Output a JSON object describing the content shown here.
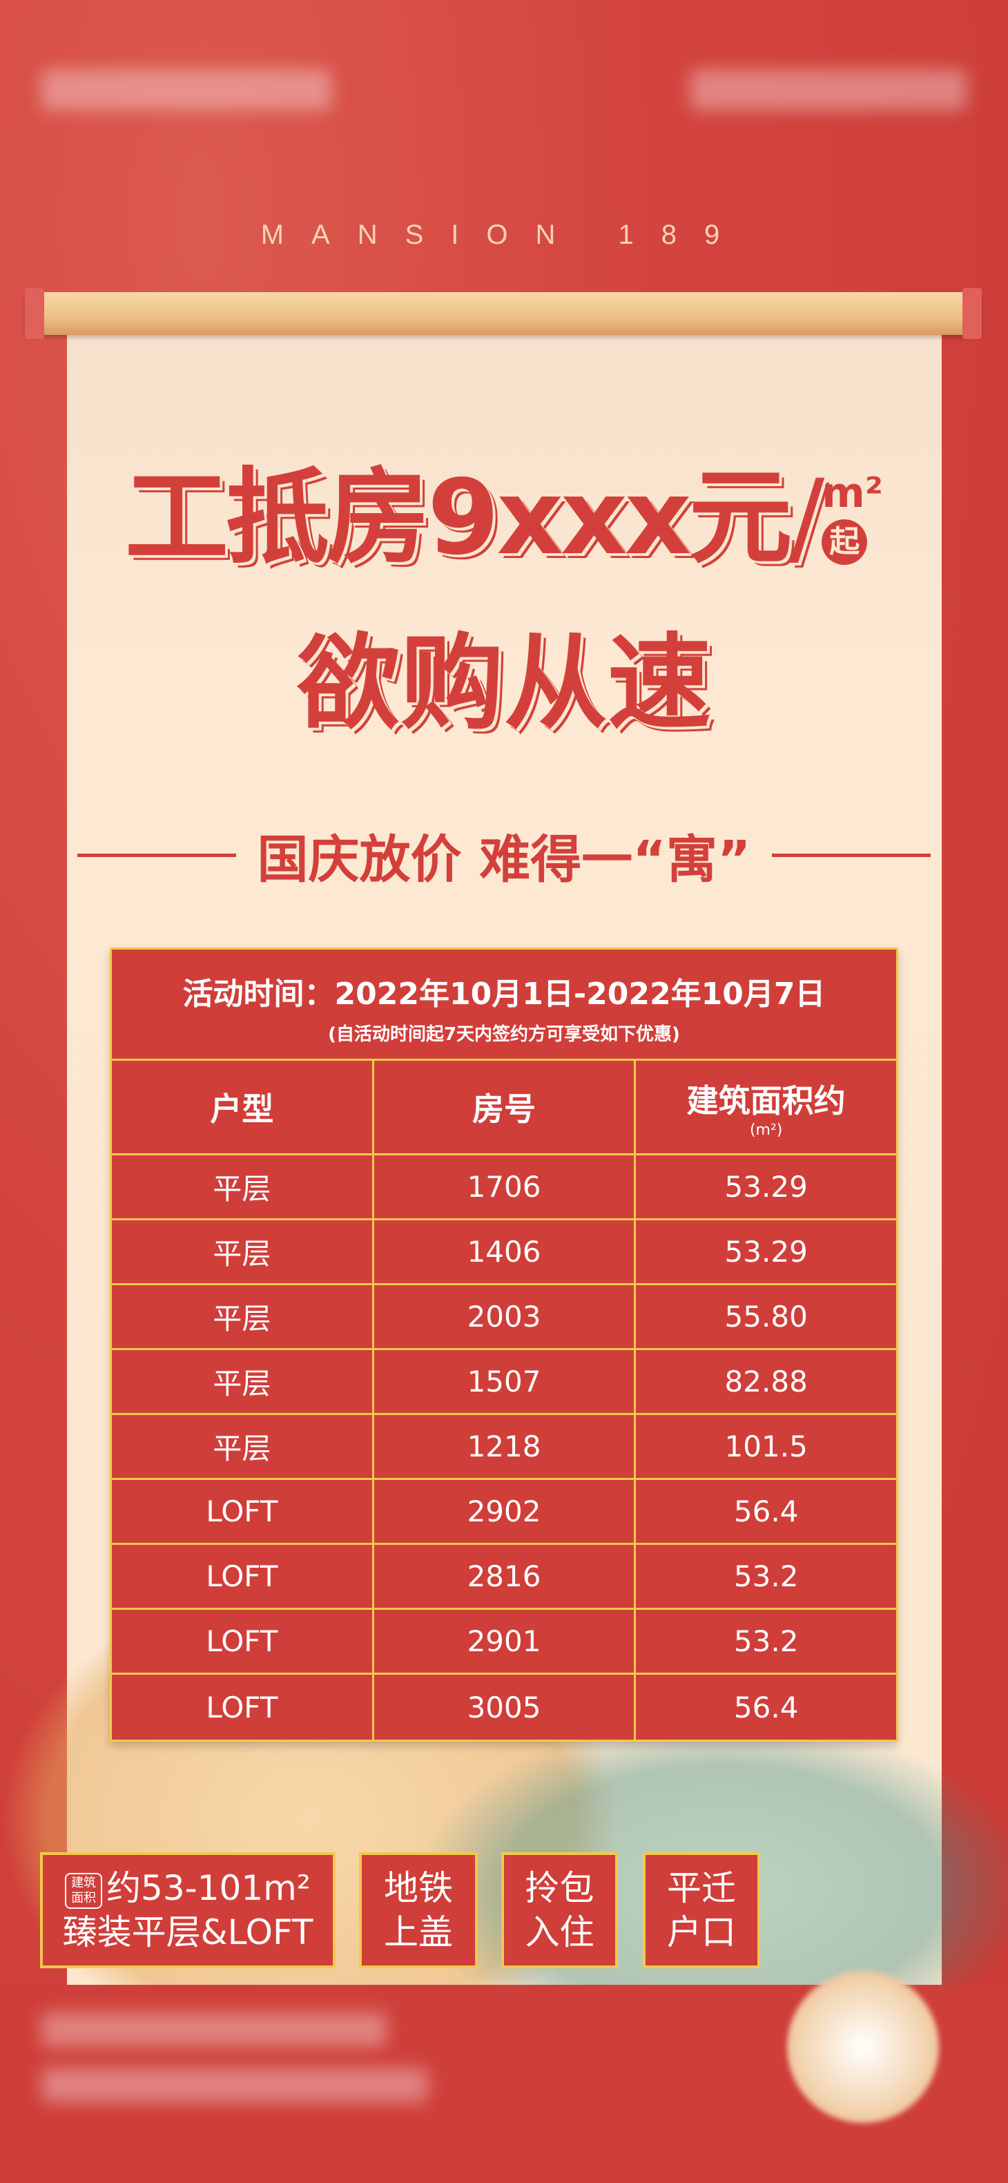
{
  "brand": "MANSION 189",
  "headline": {
    "line1_prefix": "工抵房",
    "price": "9xxx",
    "currency": "元",
    "slash": "/",
    "unit": "m²",
    "qi": "起",
    "line2": "欲购从速"
  },
  "subtitle": "国庆放价 难得一“寓”",
  "table": {
    "activity_time": "活动时间：2022年10月1日-2022年10月7日",
    "note": "(自活动时间起7天内签约方可享受如下优惠)",
    "headers": [
      "户型",
      "房号",
      "建筑面积约"
    ],
    "area_unit": "(m²)",
    "rows": [
      [
        "平层",
        "1706",
        "53.29"
      ],
      [
        "平层",
        "1406",
        "53.29"
      ],
      [
        "平层",
        "2003",
        "55.80"
      ],
      [
        "平层",
        "1507",
        "82.88"
      ],
      [
        "平层",
        "1218",
        "101.5"
      ],
      [
        "LOFT",
        "2902",
        "56.4"
      ],
      [
        "LOFT",
        "2816",
        "53.2"
      ],
      [
        "LOFT",
        "2901",
        "53.2"
      ],
      [
        "LOFT",
        "3005",
        "56.4"
      ]
    ]
  },
  "features": {
    "tag": "建筑面积",
    "area": "约53-101m²",
    "type": "臻装平层&LOFT",
    "items": [
      [
        "地铁",
        "上盖"
      ],
      [
        "拎包",
        "入住"
      ],
      [
        "平迁",
        "户口"
      ]
    ]
  },
  "colors": {
    "red": "#d03e3a",
    "paper": "#fde9d3",
    "gold": "#f2c94c"
  }
}
